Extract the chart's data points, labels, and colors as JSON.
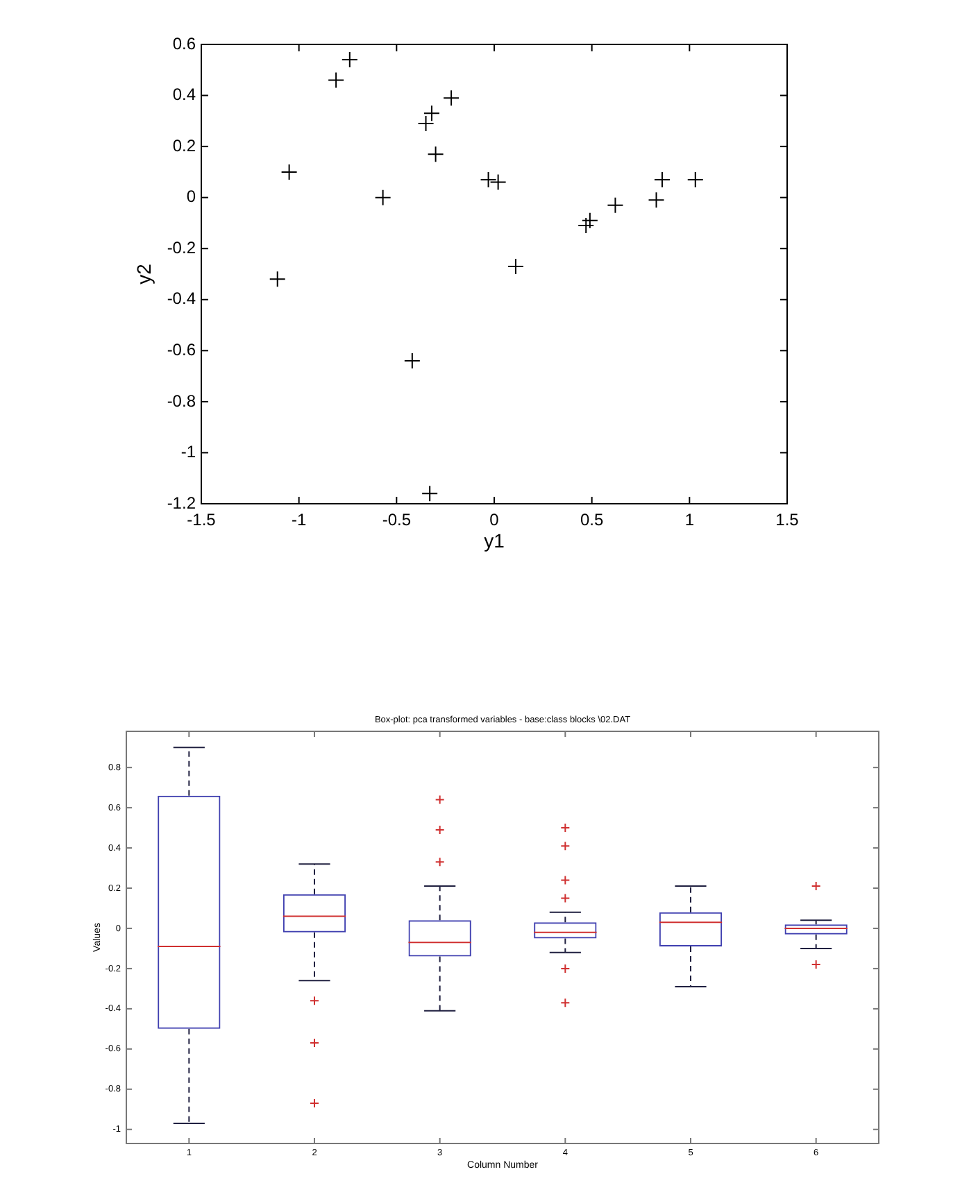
{
  "chart_data": [
    {
      "type": "scatter",
      "xlabel": "y1",
      "ylabel": "y2",
      "x": [
        -0.74,
        -0.81,
        -0.22,
        -0.32,
        -0.35,
        -0.3,
        -1.05,
        -0.57,
        -0.03,
        0.02,
        0.47,
        0.49,
        0.62,
        0.83,
        0.86,
        1.03,
        0.11,
        -1.11,
        -0.42,
        -0.33
      ],
      "values": [
        0.54,
        0.46,
        0.39,
        0.33,
        0.29,
        0.17,
        0.1,
        0,
        0.07,
        0.06,
        -0.11,
        -0.09,
        -0.03,
        -0.01,
        0.07,
        0.07,
        -0.27,
        -0.32,
        -0.64,
        -1.16
      ],
      "color": "#000000",
      "marker": "cross",
      "xlim": [
        -1.5,
        1.5
      ],
      "ylim": [
        -1.2,
        0.6
      ],
      "xticks": [
        -1.5,
        -1,
        -0.5,
        0,
        0.5,
        1,
        1.5
      ],
      "yticks": [
        -1.2,
        -1,
        -0.8,
        -0.6,
        -0.4,
        -0.2,
        0,
        0.2,
        0.4,
        0.6
      ]
    },
    {
      "type": "box",
      "title": "Box-plot: pca transformed variables - base:class blocks \\02.DAT",
      "xlabel": "Column Number",
      "ylabel": "Values",
      "categories": [
        "1",
        "2",
        "3",
        "4",
        "5",
        "6"
      ],
      "color": "#4040b0",
      "marker": "cross",
      "ylim": [
        -1.07,
        0.98
      ],
      "yticks": [
        -1,
        -0.8,
        -0.6,
        -0.4,
        -0.2,
        0,
        0.2,
        0.4,
        0.6,
        0.8
      ],
      "boxes": [
        {
          "low": -0.97,
          "q1": -0.5,
          "median": -0.09,
          "q3": 0.66,
          "high": 0.9
        },
        {
          "low": -0.26,
          "q1": -0.02,
          "median": 0.06,
          "q3": 0.17,
          "high": 0.32,
          "outliers": [
            -0.36,
            -0.57,
            -0.87
          ]
        },
        {
          "low": -0.41,
          "q1": -0.14,
          "median": -0.07,
          "q3": 0.04,
          "high": 0.21,
          "outliers": [
            0.64,
            0.49,
            0.33
          ]
        },
        {
          "low": -0.12,
          "q1": -0.05,
          "median": -0.02,
          "q3": 0.03,
          "high": 0.08,
          "outliers": [
            0.5,
            0.41,
            0.24,
            0.15,
            -0.2,
            -0.37
          ]
        },
        {
          "low": -0.29,
          "q1": -0.09,
          "median": 0.03,
          "q3": 0.08,
          "high": 0.21
        },
        {
          "low": -0.1,
          "q1": -0.03,
          "median": 0,
          "q3": 0.02,
          "high": 0.04,
          "outliers": [
            0.21,
            -0.18
          ]
        }
      ]
    }
  ]
}
